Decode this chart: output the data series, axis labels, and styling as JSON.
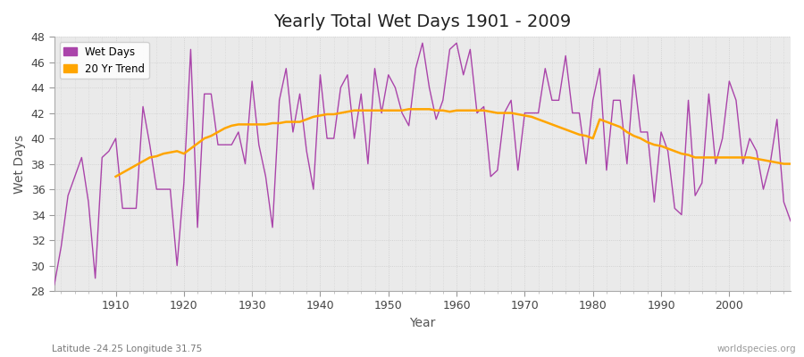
{
  "title": "Yearly Total Wet Days 1901 - 2009",
  "xlabel": "Year",
  "ylabel": "Wet Days",
  "subtitle": "Latitude -24.25 Longitude 31.75",
  "watermark": "worldspecies.org",
  "ylim": [
    28,
    48
  ],
  "yticks": [
    28,
    30,
    32,
    34,
    36,
    38,
    40,
    42,
    44,
    46,
    48
  ],
  "xlim": [
    1901,
    2009
  ],
  "xticks": [
    1910,
    1920,
    1930,
    1940,
    1950,
    1960,
    1970,
    1980,
    1990,
    2000
  ],
  "wet_days_color": "#AA44AA",
  "trend_color": "#FFA500",
  "fig_bg_color": "#FFFFFF",
  "plot_bg_color": "#EAEAEA",
  "legend_items": [
    "Wet Days",
    "20 Yr Trend"
  ],
  "years": [
    1901,
    1902,
    1903,
    1904,
    1905,
    1906,
    1907,
    1908,
    1909,
    1910,
    1911,
    1912,
    1913,
    1914,
    1915,
    1916,
    1917,
    1918,
    1919,
    1920,
    1921,
    1922,
    1923,
    1924,
    1925,
    1926,
    1927,
    1928,
    1929,
    1930,
    1931,
    1932,
    1933,
    1934,
    1935,
    1936,
    1937,
    1938,
    1939,
    1940,
    1941,
    1942,
    1943,
    1944,
    1945,
    1946,
    1947,
    1948,
    1949,
    1950,
    1951,
    1952,
    1953,
    1954,
    1955,
    1956,
    1957,
    1958,
    1959,
    1960,
    1961,
    1962,
    1963,
    1964,
    1965,
    1966,
    1967,
    1968,
    1969,
    1970,
    1971,
    1972,
    1973,
    1974,
    1975,
    1976,
    1977,
    1978,
    1979,
    1980,
    1981,
    1982,
    1983,
    1984,
    1985,
    1986,
    1987,
    1988,
    1989,
    1990,
    1991,
    1992,
    1993,
    1994,
    1995,
    1996,
    1997,
    1998,
    1999,
    2000,
    2001,
    2002,
    2003,
    2004,
    2005,
    2006,
    2007,
    2008,
    2009
  ],
  "wet_days": [
    28.5,
    31.5,
    35.5,
    37.0,
    38.5,
    35.0,
    29.0,
    38.5,
    39.0,
    40.0,
    34.5,
    34.5,
    34.5,
    42.5,
    39.5,
    36.0,
    36.0,
    36.0,
    30.0,
    36.5,
    47.0,
    33.0,
    43.5,
    43.5,
    39.5,
    39.5,
    39.5,
    40.5,
    38.0,
    44.5,
    39.5,
    37.0,
    33.0,
    43.0,
    45.5,
    40.5,
    43.5,
    39.0,
    36.0,
    45.0,
    40.0,
    40.0,
    44.0,
    45.0,
    40.0,
    43.5,
    38.0,
    45.5,
    42.0,
    45.0,
    44.0,
    42.0,
    41.0,
    45.5,
    47.5,
    44.0,
    41.5,
    43.0,
    47.0,
    47.5,
    45.0,
    47.0,
    42.0,
    42.5,
    37.0,
    37.5,
    42.0,
    43.0,
    37.5,
    42.0,
    42.0,
    42.0,
    45.5,
    43.0,
    43.0,
    46.5,
    42.0,
    42.0,
    38.0,
    43.0,
    45.5,
    37.5,
    43.0,
    43.0,
    38.0,
    45.0,
    40.5,
    40.5,
    35.0,
    40.5,
    39.0,
    34.5,
    34.0,
    43.0,
    35.5,
    36.5,
    43.5,
    38.0,
    40.0,
    44.5,
    43.0,
    38.0,
    40.0,
    39.0,
    36.0,
    38.0,
    41.5,
    35.0,
    33.5
  ],
  "trend_years": [
    1910,
    1911,
    1912,
    1913,
    1914,
    1915,
    1916,
    1917,
    1918,
    1919,
    1920,
    1921,
    1922,
    1923,
    1924,
    1925,
    1926,
    1927,
    1928,
    1929,
    1930,
    1931,
    1932,
    1933,
    1934,
    1935,
    1936,
    1937,
    1938,
    1939,
    1940,
    1941,
    1942,
    1943,
    1944,
    1945,
    1946,
    1947,
    1948,
    1949,
    1950,
    1951,
    1952,
    1953,
    1954,
    1955,
    1956,
    1957,
    1958,
    1959,
    1960,
    1961,
    1962,
    1963,
    1964,
    1965,
    1966,
    1967,
    1968,
    1969,
    1970,
    1971,
    1972,
    1973,
    1974,
    1975,
    1976,
    1977,
    1978,
    1979,
    1980,
    1981,
    1982,
    1983,
    1984,
    1985,
    1986,
    1987,
    1988,
    1989,
    1990,
    1991,
    1992,
    1993,
    1994,
    1995,
    1996,
    1997,
    1998,
    1999,
    2000,
    2001,
    2002,
    2003,
    2004,
    2005,
    2006,
    2007,
    2008,
    2009
  ],
  "trend_values": [
    37.0,
    37.3,
    37.6,
    37.9,
    38.2,
    38.5,
    38.6,
    38.8,
    38.9,
    39.0,
    38.8,
    39.2,
    39.6,
    40.0,
    40.2,
    40.5,
    40.8,
    41.0,
    41.1,
    41.1,
    41.1,
    41.1,
    41.1,
    41.2,
    41.2,
    41.3,
    41.3,
    41.3,
    41.5,
    41.7,
    41.8,
    41.9,
    41.9,
    42.0,
    42.1,
    42.2,
    42.2,
    42.2,
    42.2,
    42.2,
    42.2,
    42.2,
    42.2,
    42.3,
    42.3,
    42.3,
    42.3,
    42.2,
    42.2,
    42.1,
    42.2,
    42.2,
    42.2,
    42.2,
    42.2,
    42.1,
    42.0,
    42.0,
    42.0,
    41.9,
    41.8,
    41.7,
    41.5,
    41.3,
    41.1,
    40.9,
    40.7,
    40.5,
    40.3,
    40.2,
    40.0,
    41.5,
    41.3,
    41.1,
    40.9,
    40.5,
    40.2,
    40.0,
    39.7,
    39.5,
    39.4,
    39.2,
    39.0,
    38.8,
    38.7,
    38.5,
    38.5,
    38.5,
    38.5,
    38.5,
    38.5,
    38.5,
    38.5,
    38.5,
    38.4,
    38.3,
    38.2,
    38.1,
    38.0,
    38.0
  ]
}
